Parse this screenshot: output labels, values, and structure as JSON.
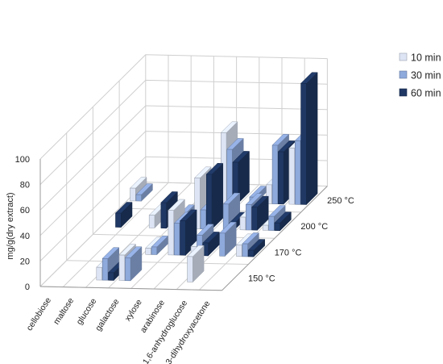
{
  "chart_data": {
    "type": "bar",
    "title": "",
    "ylabel": "mg/g(dry extract)",
    "ylim": [
      0,
      100
    ],
    "yticks": [
      "0",
      "20",
      "40",
      "60",
      "80",
      "100"
    ],
    "grid": true,
    "legend_position": "right",
    "categories": [
      "cellobiose",
      "maltose",
      "glucose",
      "galactose",
      "xylose",
      "arabinose",
      "1,6-anhydroglucose",
      "1,3-dihydroxyacetone"
    ],
    "depth_categories": [
      "150 °C",
      "170 °C",
      "200 °C",
      "250 °C"
    ],
    "series": [
      {
        "name": "10 min",
        "color": "#dde5f5",
        "values": {
          "150 °C": [
            0,
            0,
            10,
            20,
            0,
            0,
            20,
            0
          ],
          "170 °C": [
            0,
            0,
            0,
            5,
            35,
            7,
            0,
            9
          ],
          "200 °C": [
            0,
            0,
            10,
            0,
            40,
            0,
            10,
            4
          ],
          "250 °C": [
            10,
            0,
            0,
            10,
            55,
            0,
            15,
            44
          ]
        }
      },
      {
        "name": "30 min",
        "color": "#8ea9db",
        "values": {
          "150 °C": [
            0,
            0,
            17,
            18,
            0,
            0,
            0,
            0
          ],
          "170 °C": [
            0,
            0,
            0,
            6,
            25,
            16,
            18,
            10
          ],
          "200 °C": [
            0,
            0,
            0,
            10,
            15,
            20,
            20,
            11
          ],
          "250 °C": [
            5,
            0,
            0,
            5,
            42,
            5,
            46,
            50
          ]
        }
      },
      {
        "name": "60 min",
        "color": "#1f3864",
        "values": {
          "150 °C": [
            0,
            0,
            6,
            0,
            0,
            0,
            0,
            0
          ],
          "170 °C": [
            0,
            0,
            0,
            0,
            27,
            10,
            0,
            5
          ],
          "200 °C": [
            11,
            0,
            20,
            0,
            43,
            5,
            18,
            6
          ],
          "250 °C": [
            0,
            0,
            0,
            5,
            32,
            0,
            41,
            95
          ]
        }
      }
    ]
  }
}
